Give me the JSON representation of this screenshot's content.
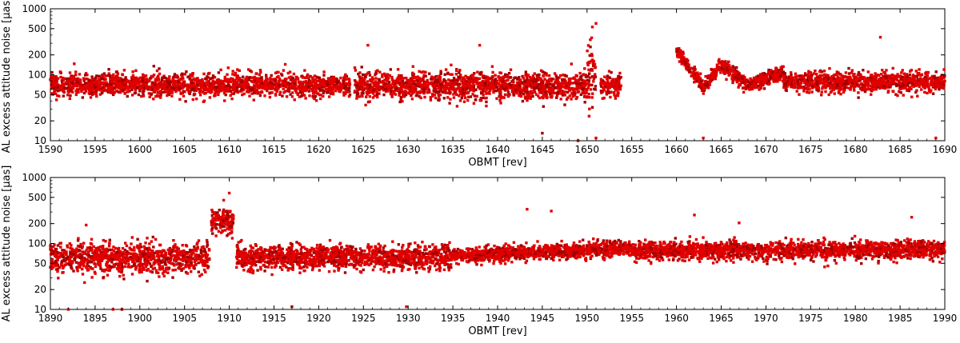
{
  "chart_data": [
    {
      "type": "scatter",
      "title": "",
      "xlabel": "OBMT [rev]",
      "ylabel": "AL excess attitude noise [μas]",
      "xlim": [
        1590,
        1690
      ],
      "ylim": [
        10,
        1000
      ],
      "yscale": "log",
      "grid": false,
      "legend": "none",
      "xticks": [
        1590,
        1595,
        1600,
        1605,
        1610,
        1615,
        1620,
        1625,
        1630,
        1635,
        1640,
        1645,
        1650,
        1655,
        1660,
        1665,
        1670,
        1675,
        1680,
        1685,
        1690
      ],
      "yticks": [
        10,
        20,
        50,
        100,
        200,
        500,
        1000
      ],
      "series": [
        {
          "color": "#e00000",
          "segments": [
            {
              "x": [
                1590,
                1623.5
              ],
              "median": 70,
              "spread": 20,
              "note_trend": "flat"
            },
            {
              "x": [
                1624,
                1650
              ],
              "median": 68,
              "spread": 25
            },
            {
              "x": [
                1650,
                1651
              ],
              "median": 110,
              "spread": 120
            },
            {
              "x": [
                1651.5,
                1653.8
              ],
              "median": 70,
              "spread": 20
            },
            {
              "x": [
                1660,
                1663
              ],
              "median_start": 240,
              "median_end": 65
            },
            {
              "x": [
                1663,
                1665
              ],
              "median_start": 65,
              "median_end": 140
            },
            {
              "x": [
                1665,
                1668
              ],
              "median_start": 140,
              "median_end": 70
            },
            {
              "x": [
                1668,
                1672
              ],
              "median_start": 70,
              "median_end": 110
            },
            {
              "x": [
                1672,
                1690
              ],
              "median": 78,
              "spread": 20
            }
          ],
          "outliers": [
            [
              1625.5,
              280
            ],
            [
              1638,
              280
            ],
            [
              1651,
              600
            ],
            [
              1650.6,
              530
            ],
            [
              1682.8,
              370
            ],
            [
              1645,
              13
            ],
            [
              1649,
              10
            ],
            [
              1651,
              11
            ],
            [
              1663,
              11
            ],
            [
              1689,
              11
            ]
          ]
        }
      ]
    },
    {
      "type": "scatter",
      "title": "",
      "xlabel": "OBMT [rev]",
      "ylabel": "AL excess attitude noise [μas]",
      "xlim": [
        1890,
        1990
      ],
      "ylim": [
        10,
        1000
      ],
      "yscale": "log",
      "grid": false,
      "legend": "none",
      "xticks": [
        1890,
        1895,
        1900,
        1905,
        1910,
        1915,
        1920,
        1925,
        1930,
        1935,
        1940,
        1945,
        1950,
        1955,
        1960,
        1965,
        1970,
        1975,
        1980,
        1985,
        1990
      ],
      "yticks": [
        10,
        20,
        50,
        100,
        200,
        500,
        1000
      ],
      "series": [
        {
          "color": "#e00000",
          "segments": [
            {
              "x": [
                1890,
                1907.8
              ],
              "median": 60,
              "spread": 25
            },
            {
              "x": [
                1908,
                1910.5
              ],
              "median": 220,
              "spread": 80
            },
            {
              "x": [
                1910.8,
                1935
              ],
              "median": 62,
              "spread": 20
            },
            {
              "x": [
                1935,
                1955
              ],
              "median_start": 65,
              "median_end": 85
            },
            {
              "x": [
                1955,
                1990
              ],
              "median": 78,
              "spread": 18
            }
          ],
          "outliers": [
            [
              1894,
              190
            ],
            [
              1910,
              580
            ],
            [
              1943.3,
              330
            ],
            [
              1946,
              310
            ],
            [
              1962,
              270
            ],
            [
              1967,
              205
            ],
            [
              1986.3,
              250
            ],
            [
              1892,
              10
            ],
            [
              1897,
              10
            ],
            [
              1898,
              10
            ],
            [
              1917,
              11
            ],
            [
              1929.8,
              11
            ]
          ]
        }
      ]
    }
  ]
}
